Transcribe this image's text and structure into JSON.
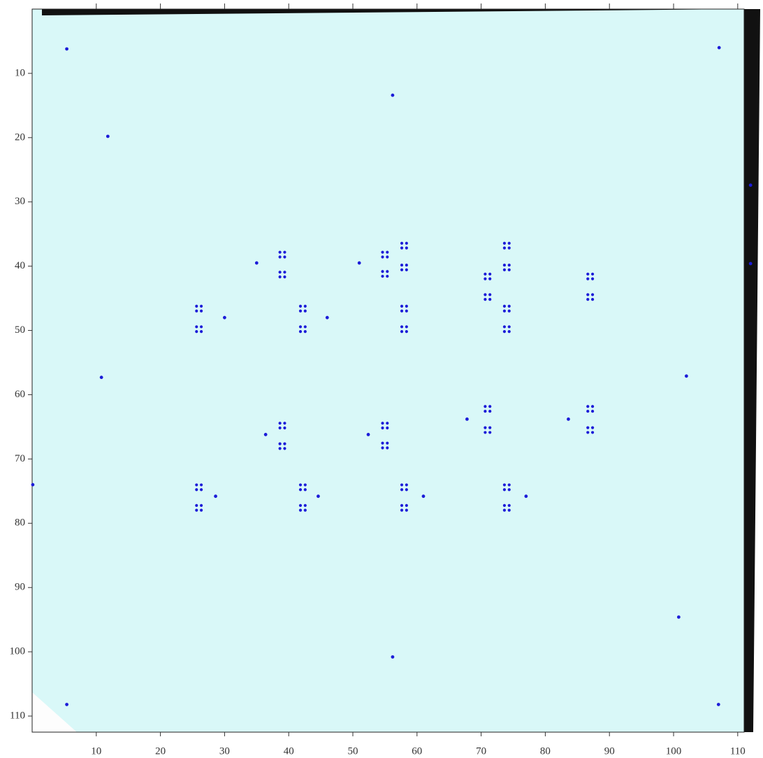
{
  "chart_data": {
    "type": "scatter",
    "xlim": [
      0,
      111
    ],
    "ylim": [
      112.5,
      0
    ],
    "xticks": [
      10,
      20,
      30,
      40,
      50,
      60,
      70,
      80,
      90,
      100,
      110
    ],
    "yticks": [
      10,
      20,
      30,
      40,
      50,
      60,
      70,
      80,
      90,
      100,
      110
    ],
    "background": "#d9f8f8",
    "series": [
      {
        "marker": "dot",
        "color": "#1c1cd8",
        "x": [
          5.4,
          107.1,
          56.2,
          11.8,
          112,
          112,
          35,
          51,
          30,
          46,
          10.8,
          102,
          67.8,
          83.6,
          36.4,
          52.4,
          0.1,
          28.6,
          44.6,
          61,
          77,
          100.8,
          56.2,
          5.4,
          107
        ],
        "y": [
          6.2,
          6,
          13.4,
          19.8,
          27.4,
          39.6,
          39.5,
          39.5,
          48,
          48,
          57.3,
          57.1,
          63.8,
          63.8,
          66.2,
          66.2,
          74,
          75.8,
          75.8,
          75.8,
          75.8,
          94.6,
          100.8,
          108.2,
          108.2
        ]
      },
      {
        "marker": "quad",
        "color": "#1c1cd8",
        "x": [
          26,
          26,
          26,
          26,
          39,
          39,
          39,
          39,
          42.2,
          42.2,
          42.2,
          42.2,
          55,
          55,
          55,
          55,
          58,
          58,
          58,
          58,
          58,
          58,
          71,
          71,
          71,
          71,
          74,
          74,
          74,
          74,
          74,
          74,
          87,
          87,
          87,
          87
        ],
        "y": [
          46.6,
          49.8,
          74.4,
          77.6,
          38.2,
          41.3,
          64.8,
          68,
          46.6,
          49.8,
          74.4,
          77.6,
          38.2,
          41.2,
          64.8,
          67.9,
          36.8,
          40.2,
          46.6,
          49.8,
          74.4,
          77.6,
          41.6,
          44.8,
          62.2,
          65.5,
          36.8,
          40.2,
          46.6,
          49.8,
          74.4,
          77.6,
          41.6,
          44.8,
          62.2,
          65.5
        ]
      }
    ]
  }
}
